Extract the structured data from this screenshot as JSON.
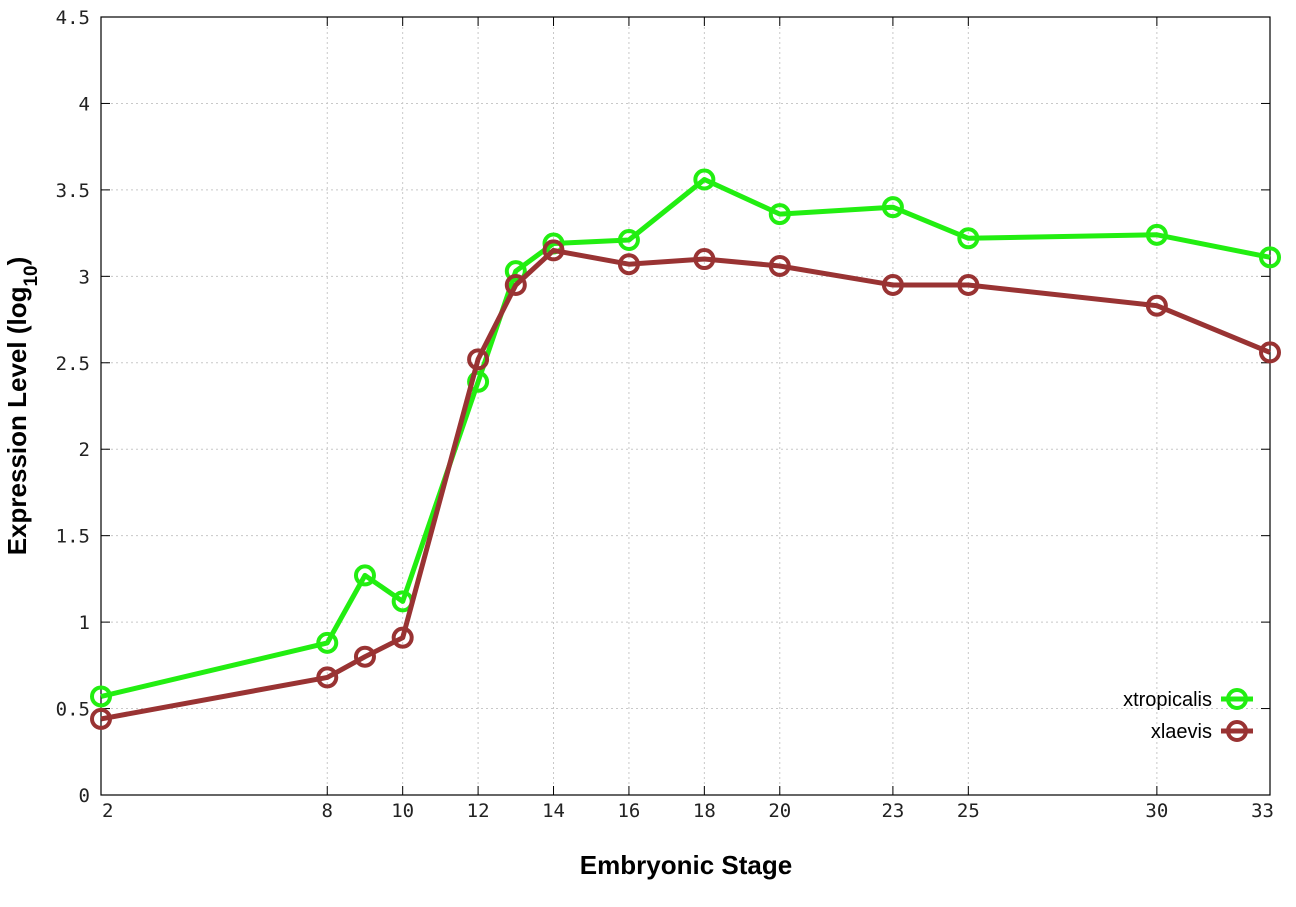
{
  "chart_data": {
    "type": "line",
    "title": "",
    "xlabel": "Embryonic Stage",
    "ylabel_main": "Expression Level (log",
    "ylabel_sub": "10",
    "ylabel_close": ")",
    "x_ticks": [
      2,
      8,
      10,
      12,
      14,
      16,
      18,
      20,
      23,
      25,
      30,
      33
    ],
    "y_ticks": [
      "0",
      "0.5",
      "1",
      "1.5",
      "2",
      "2.5",
      "3",
      "3.5",
      "4",
      "4.5"
    ],
    "xlim": [
      2,
      33
    ],
    "ylim": [
      0,
      4.5
    ],
    "grid": true,
    "legend_position": "bottom-right",
    "series": [
      {
        "name": "xtropicalis",
        "color": "#22ee11",
        "x": [
          2,
          8,
          9,
          10,
          12,
          13,
          14,
          16,
          18,
          20,
          23,
          25,
          30,
          33
        ],
        "y": [
          0.57,
          0.88,
          1.27,
          1.12,
          2.39,
          3.03,
          3.19,
          3.21,
          3.56,
          3.36,
          3.4,
          3.22,
          3.24,
          3.11
        ]
      },
      {
        "name": "xlaevis",
        "color": "#993333",
        "x": [
          2,
          8,
          9,
          10,
          12,
          13,
          14,
          16,
          18,
          20,
          23,
          25,
          30,
          33
        ],
        "y": [
          0.44,
          0.68,
          0.8,
          0.91,
          2.52,
          2.95,
          3.15,
          3.07,
          3.1,
          3.06,
          2.95,
          2.95,
          2.83,
          2.56
        ]
      }
    ]
  }
}
